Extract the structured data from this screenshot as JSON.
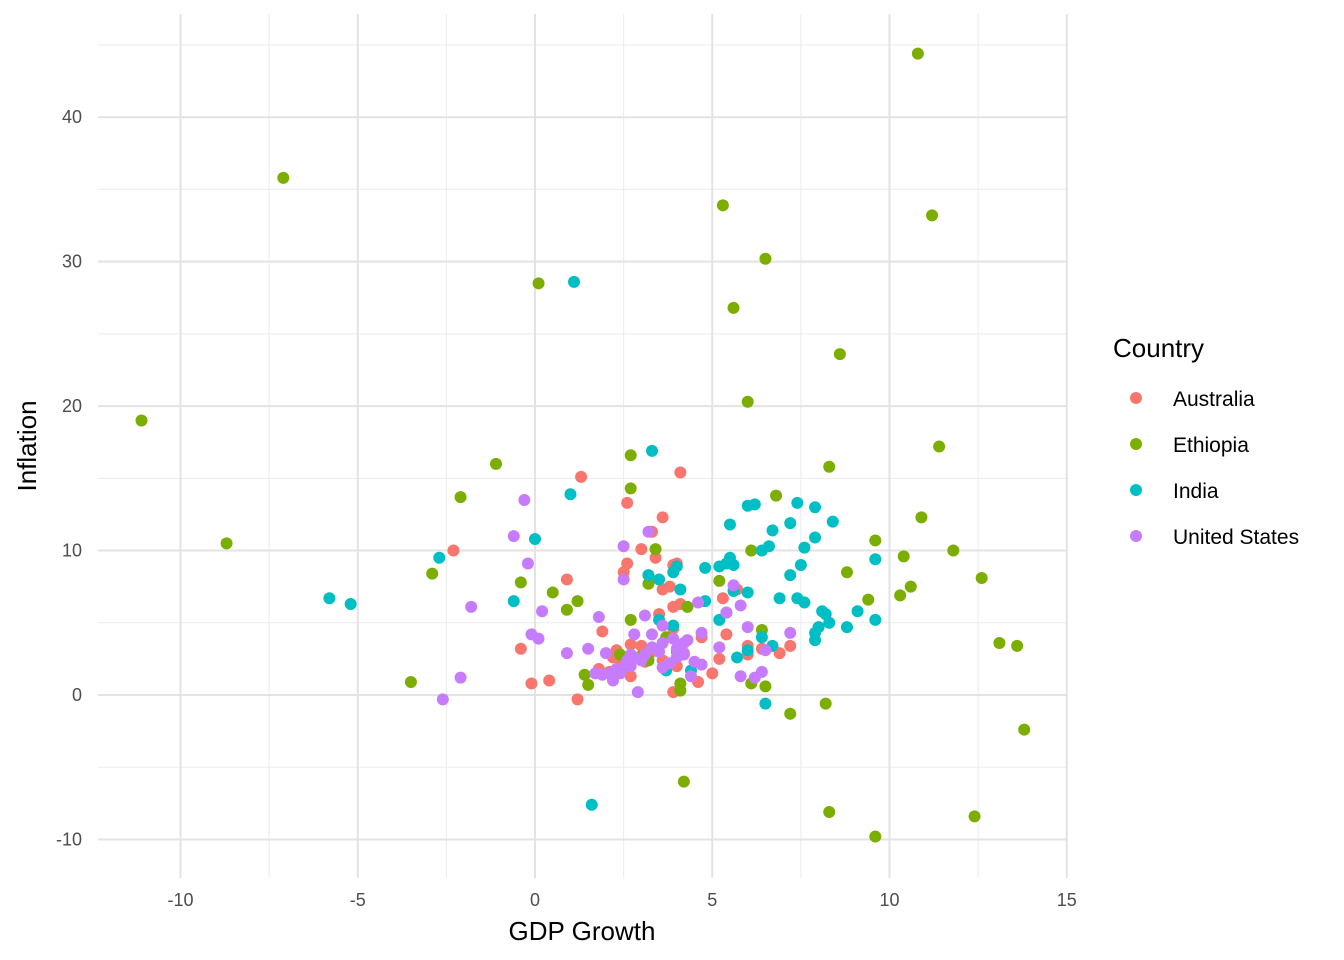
{
  "chart_data": {
    "type": "scatter",
    "xlabel": "GDP Growth",
    "ylabel": "Inflation",
    "xlim": [
      -12.5,
      15
    ],
    "ylim": [
      -12.5,
      46
    ],
    "xticks": [
      -10,
      -5,
      0,
      5,
      10,
      15
    ],
    "yticks": [
      -10,
      0,
      10,
      20,
      30,
      40
    ],
    "grid": true,
    "legend": {
      "title": "Country",
      "position": "right"
    },
    "series": [
      {
        "name": "Australia",
        "color": "#F8766D",
        "points": [
          [
            1.3,
            15.1
          ],
          [
            4.1,
            15.4
          ],
          [
            3.6,
            12.3
          ],
          [
            2.6,
            13.3
          ],
          [
            3.3,
            11.3
          ],
          [
            -2.3,
            10.0
          ],
          [
            3.0,
            10.1
          ],
          [
            2.6,
            9.1
          ],
          [
            2.5,
            8.5
          ],
          [
            3.4,
            9.5
          ],
          [
            0.9,
            8.0
          ],
          [
            3.9,
            9.0
          ],
          [
            4.0,
            9.1
          ],
          [
            3.6,
            7.3
          ],
          [
            3.8,
            7.5
          ],
          [
            3.9,
            6.1
          ],
          [
            4.1,
            6.3
          ],
          [
            3.5,
            5.6
          ],
          [
            5.3,
            6.7
          ],
          [
            5.7,
            7.3
          ],
          [
            -0.4,
            3.2
          ],
          [
            1.9,
            4.4
          ],
          [
            2.3,
            3.1
          ],
          [
            2.7,
            3.5
          ],
          [
            3.3,
            3.0
          ],
          [
            3.9,
            4.6
          ],
          [
            4.7,
            4.0
          ],
          [
            5.2,
            2.5
          ],
          [
            5.4,
            4.2
          ],
          [
            6.0,
            3.4
          ],
          [
            6.4,
            3.2
          ],
          [
            6.9,
            2.9
          ],
          [
            7.2,
            3.4
          ],
          [
            6.0,
            2.8
          ],
          [
            -0.1,
            0.8
          ],
          [
            0.4,
            1.0
          ],
          [
            1.2,
            -0.3
          ],
          [
            2.1,
            1.6
          ],
          [
            2.7,
            1.3
          ],
          [
            3.9,
            0.2
          ],
          [
            4.6,
            0.9
          ],
          [
            5.0,
            1.5
          ],
          [
            2.4,
            2.0
          ],
          [
            3.1,
            2.3
          ],
          [
            3.6,
            2.4
          ],
          [
            4.0,
            2.0
          ],
          [
            4.2,
            2.9
          ],
          [
            3.0,
            3.4
          ],
          [
            2.2,
            2.6
          ],
          [
            1.8,
            1.8
          ]
        ]
      },
      {
        "name": "Ethiopia",
        "color": "#7CAE00",
        "points": [
          [
            10.8,
            44.4
          ],
          [
            -7.1,
            35.8
          ],
          [
            5.3,
            33.9
          ],
          [
            11.2,
            33.2
          ],
          [
            6.5,
            30.2
          ],
          [
            0.1,
            28.5
          ],
          [
            5.6,
            26.8
          ],
          [
            8.6,
            23.6
          ],
          [
            6.0,
            20.3
          ],
          [
            -11.1,
            19.0
          ],
          [
            11.4,
            17.2
          ],
          [
            2.7,
            16.6
          ],
          [
            -1.1,
            16.0
          ],
          [
            8.3,
            15.8
          ],
          [
            2.7,
            14.3
          ],
          [
            -2.1,
            13.7
          ],
          [
            6.8,
            13.8
          ],
          [
            10.9,
            12.3
          ],
          [
            -8.7,
            10.5
          ],
          [
            9.6,
            10.7
          ],
          [
            3.4,
            10.1
          ],
          [
            6.1,
            10.0
          ],
          [
            10.4,
            9.6
          ],
          [
            11.8,
            10.0
          ],
          [
            -2.9,
            8.4
          ],
          [
            -0.4,
            7.8
          ],
          [
            3.2,
            7.7
          ],
          [
            5.2,
            7.9
          ],
          [
            8.8,
            8.5
          ],
          [
            12.6,
            8.1
          ],
          [
            0.5,
            7.1
          ],
          [
            1.2,
            6.5
          ],
          [
            0.9,
            5.9
          ],
          [
            4.3,
            6.1
          ],
          [
            9.4,
            6.6
          ],
          [
            10.3,
            6.9
          ],
          [
            10.6,
            7.5
          ],
          [
            2.7,
            5.2
          ],
          [
            6.4,
            4.5
          ],
          [
            3.0,
            2.7
          ],
          [
            3.2,
            2.4
          ],
          [
            1.4,
            1.4
          ],
          [
            1.5,
            0.7
          ],
          [
            4.1,
            0.8
          ],
          [
            4.1,
            0.3
          ],
          [
            6.1,
            0.8
          ],
          [
            6.5,
            0.6
          ],
          [
            -3.5,
            0.9
          ],
          [
            7.2,
            -1.3
          ],
          [
            8.2,
            -0.6
          ],
          [
            13.1,
            3.6
          ],
          [
            13.6,
            3.4
          ],
          [
            13.8,
            -2.4
          ],
          [
            4.2,
            -6.0
          ],
          [
            8.3,
            -8.1
          ],
          [
            12.4,
            -8.4
          ],
          [
            9.6,
            -9.8
          ],
          [
            3.7,
            4.0
          ],
          [
            4.0,
            3.0
          ],
          [
            2.4,
            2.8
          ]
        ]
      },
      {
        "name": "India",
        "color": "#00BFC4",
        "points": [
          [
            1.1,
            28.6
          ],
          [
            3.3,
            16.9
          ],
          [
            1.0,
            13.9
          ],
          [
            6.0,
            13.1
          ],
          [
            6.2,
            13.2
          ],
          [
            7.4,
            13.3
          ],
          [
            7.9,
            13.0
          ],
          [
            5.5,
            11.8
          ],
          [
            6.7,
            11.4
          ],
          [
            7.2,
            11.9
          ],
          [
            8.4,
            12.0
          ],
          [
            6.6,
            10.3
          ],
          [
            7.6,
            10.2
          ],
          [
            6.4,
            10.0
          ],
          [
            7.9,
            10.9
          ],
          [
            -2.7,
            9.5
          ],
          [
            0.0,
            10.8
          ],
          [
            4.8,
            8.8
          ],
          [
            5.2,
            8.9
          ],
          [
            5.4,
            9.1
          ],
          [
            5.5,
            9.5
          ],
          [
            5.6,
            9.0
          ],
          [
            3.5,
            8.0
          ],
          [
            3.9,
            8.5
          ],
          [
            7.2,
            8.3
          ],
          [
            7.5,
            9.0
          ],
          [
            9.6,
            9.4
          ],
          [
            -5.8,
            6.7
          ],
          [
            -5.2,
            6.3
          ],
          [
            -0.6,
            6.5
          ],
          [
            4.8,
            6.5
          ],
          [
            5.6,
            7.2
          ],
          [
            6.0,
            7.1
          ],
          [
            6.9,
            6.7
          ],
          [
            7.4,
            6.7
          ],
          [
            7.6,
            6.4
          ],
          [
            8.1,
            5.8
          ],
          [
            8.2,
            5.6
          ],
          [
            9.1,
            5.8
          ],
          [
            9.6,
            5.2
          ],
          [
            3.5,
            5.2
          ],
          [
            4.1,
            7.3
          ],
          [
            5.2,
            5.2
          ],
          [
            5.4,
            5.7
          ],
          [
            8.0,
            4.7
          ],
          [
            8.3,
            5.0
          ],
          [
            8.8,
            4.7
          ],
          [
            7.9,
            3.8
          ],
          [
            7.9,
            4.3
          ],
          [
            6.4,
            4.0
          ],
          [
            6.0,
            3.1
          ],
          [
            6.7,
            3.4
          ],
          [
            5.7,
            2.6
          ],
          [
            3.7,
            1.7
          ],
          [
            3.9,
            4.8
          ],
          [
            4.4,
            1.7
          ],
          [
            6.5,
            -0.6
          ],
          [
            1.6,
            -7.6
          ],
          [
            3.2,
            8.3
          ],
          [
            4.0,
            8.9
          ]
        ]
      },
      {
        "name": "United States",
        "color": "#C77CFF",
        "points": [
          [
            -0.3,
            13.5
          ],
          [
            -0.6,
            11.0
          ],
          [
            -0.2,
            9.1
          ],
          [
            3.2,
            11.3
          ],
          [
            2.5,
            10.3
          ],
          [
            2.5,
            8.0
          ],
          [
            -1.8,
            6.1
          ],
          [
            0.2,
            5.8
          ],
          [
            1.8,
            5.4
          ],
          [
            3.1,
            5.5
          ],
          [
            3.6,
            4.8
          ],
          [
            4.6,
            6.4
          ],
          [
            5.6,
            7.6
          ],
          [
            5.8,
            6.2
          ],
          [
            4.7,
            4.3
          ],
          [
            5.4,
            5.7
          ],
          [
            6.0,
            4.7
          ],
          [
            -0.1,
            4.2
          ],
          [
            0.1,
            3.9
          ],
          [
            0.9,
            2.9
          ],
          [
            1.5,
            3.2
          ],
          [
            2.0,
            2.9
          ],
          [
            2.8,
            4.2
          ],
          [
            3.3,
            4.2
          ],
          [
            3.6,
            3.6
          ],
          [
            3.9,
            3.9
          ],
          [
            4.2,
            3.6
          ],
          [
            4.3,
            3.8
          ],
          [
            -2.1,
            1.2
          ],
          [
            -2.6,
            -0.3
          ],
          [
            1.7,
            1.5
          ],
          [
            1.9,
            1.4
          ],
          [
            2.2,
            1.0
          ],
          [
            2.4,
            1.5
          ],
          [
            2.6,
            2.4
          ],
          [
            2.7,
            2.0
          ],
          [
            2.9,
            0.2
          ],
          [
            3.0,
            2.4
          ],
          [
            3.3,
            3.3
          ],
          [
            3.5,
            3.0
          ],
          [
            3.8,
            2.2
          ],
          [
            4.0,
            2.6
          ],
          [
            4.2,
            2.8
          ],
          [
            4.4,
            1.3
          ],
          [
            4.5,
            2.3
          ],
          [
            4.7,
            2.1
          ],
          [
            5.2,
            3.3
          ],
          [
            5.8,
            1.3
          ],
          [
            6.2,
            1.2
          ],
          [
            6.4,
            1.6
          ],
          [
            6.5,
            3.1
          ],
          [
            7.2,
            4.3
          ],
          [
            2.3,
            1.8
          ],
          [
            2.5,
            1.9
          ],
          [
            2.7,
            2.8
          ],
          [
            3.1,
            2.8
          ],
          [
            3.6,
            1.9
          ],
          [
            4.0,
            3.2
          ],
          [
            2.1,
            1.5
          ],
          [
            2.8,
            2.6
          ]
        ]
      }
    ]
  }
}
